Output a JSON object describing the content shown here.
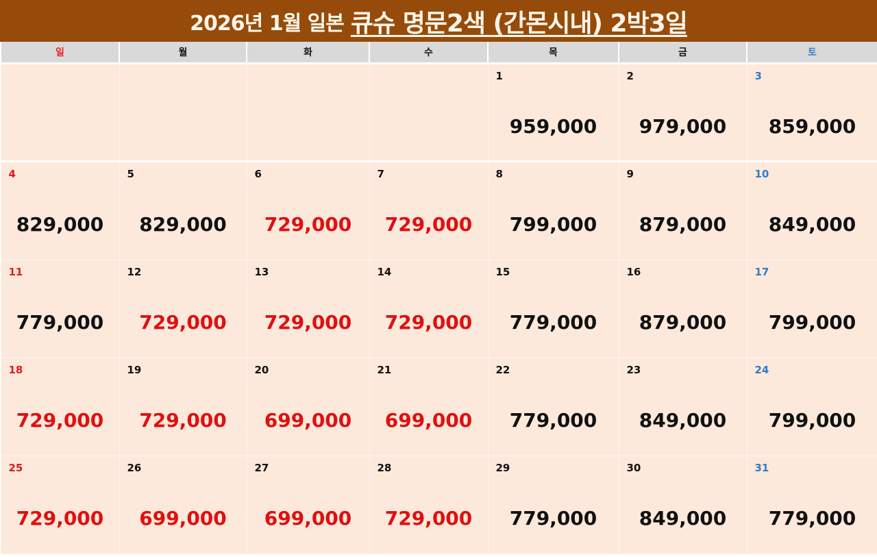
{
  "header": {
    "title_plain": "2026년 1월 일본",
    "title_main": "큐슈 명문2색 (간몬시내) 2박3일"
  },
  "colors": {
    "title_bg": "#964b0a",
    "header_bg": "#d9d9d9",
    "cell_bg": "#fde9dc",
    "sunday": "#e01b1b",
    "saturday": "#2f7dc4",
    "low_price": "#e01010",
    "normal_price": "#111111"
  },
  "calendar": {
    "weekdays": [
      "일",
      "월",
      "화",
      "수",
      "목",
      "금",
      "토"
    ],
    "weeks": [
      [
        {
          "day": "",
          "price": "",
          "low": false
        },
        {
          "day": "",
          "price": "",
          "low": false
        },
        {
          "day": "",
          "price": "",
          "low": false
        },
        {
          "day": "",
          "price": "",
          "low": false
        },
        {
          "day": "1",
          "price": "959,000",
          "low": false
        },
        {
          "day": "2",
          "price": "979,000",
          "low": false
        },
        {
          "day": "3",
          "price": "859,000",
          "low": false
        }
      ],
      [
        {
          "day": "4",
          "price": "829,000",
          "low": false
        },
        {
          "day": "5",
          "price": "829,000",
          "low": false
        },
        {
          "day": "6",
          "price": "729,000",
          "low": true
        },
        {
          "day": "7",
          "price": "729,000",
          "low": true
        },
        {
          "day": "8",
          "price": "799,000",
          "low": false
        },
        {
          "day": "9",
          "price": "879,000",
          "low": false
        },
        {
          "day": "10",
          "price": "849,000",
          "low": false
        }
      ],
      [
        {
          "day": "11",
          "price": "779,000",
          "low": false
        },
        {
          "day": "12",
          "price": "729,000",
          "low": true
        },
        {
          "day": "13",
          "price": "729,000",
          "low": true
        },
        {
          "day": "14",
          "price": "729,000",
          "low": true
        },
        {
          "day": "15",
          "price": "779,000",
          "low": false
        },
        {
          "day": "16",
          "price": "879,000",
          "low": false
        },
        {
          "day": "17",
          "price": "799,000",
          "low": false
        }
      ],
      [
        {
          "day": "18",
          "price": "729,000",
          "low": true
        },
        {
          "day": "19",
          "price": "729,000",
          "low": true
        },
        {
          "day": "20",
          "price": "699,000",
          "low": true
        },
        {
          "day": "21",
          "price": "699,000",
          "low": true
        },
        {
          "day": "22",
          "price": "779,000",
          "low": false
        },
        {
          "day": "23",
          "price": "849,000",
          "low": false
        },
        {
          "day": "24",
          "price": "799,000",
          "low": false
        }
      ],
      [
        {
          "day": "25",
          "price": "729,000",
          "low": true
        },
        {
          "day": "26",
          "price": "699,000",
          "low": true
        },
        {
          "day": "27",
          "price": "699,000",
          "low": true
        },
        {
          "day": "28",
          "price": "729,000",
          "low": true
        },
        {
          "day": "29",
          "price": "779,000",
          "low": false
        },
        {
          "day": "30",
          "price": "849,000",
          "low": false
        },
        {
          "day": "31",
          "price": "779,000",
          "low": false
        }
      ]
    ]
  }
}
